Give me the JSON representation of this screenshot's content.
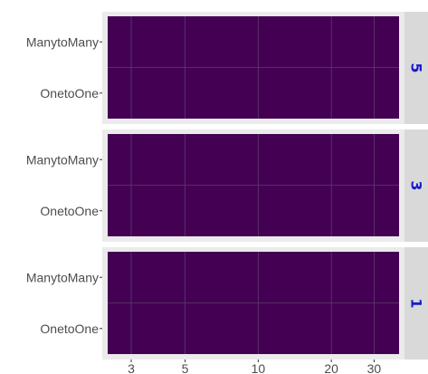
{
  "chart_data": {
    "type": "heatmap",
    "title": "",
    "xlabel": "",
    "ylabel": "",
    "x_scale": "log",
    "x_ticks": [
      3,
      5,
      10,
      20,
      30
    ],
    "xlim": [
      2.4,
      38
    ],
    "y_categories": [
      "ManytoMany",
      "OnetoOne"
    ],
    "panels": [
      {
        "strip": "5"
      },
      {
        "strip": "3"
      },
      {
        "strip": "1"
      }
    ],
    "grid": true,
    "cell_color": "#440154",
    "colors": {
      "panel_fill": "#440154",
      "panel_background": "#ebebeb",
      "strip_fill": "#d9d9d9",
      "strip_text": "#1a1acd",
      "gridline": "#5a3d6b",
      "tick_text": "#4d4d4d"
    }
  }
}
